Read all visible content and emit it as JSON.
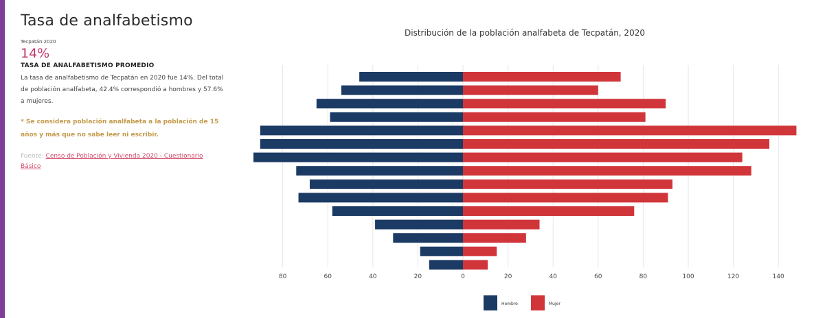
{
  "colors": {
    "accent": "#7d3f98",
    "stat": "#c0366e",
    "note": "#c49a4b",
    "hombre": "#1b3a64",
    "mujer": "#d0353a",
    "grid": "#e6e6e6"
  },
  "panel": {
    "title": "Tasa de analfabetismo",
    "place": "Tecpatán 2020",
    "stat_value": "14%",
    "stat_label": "TASA DE ANALFABETISMO PROMEDIO",
    "description": "La tasa de analfabetismo de Tecpatán en 2020 fue 14%. Del total de población analfabeta, 42.4% correspondió a hombres y 57.6% a mujeres.",
    "note": "* Se considera población analfabeta a la población de 15 años y más que no sabe leer ni escribir.",
    "source_prefix": "Fuente:",
    "source_link": "Censo de Población y Vivienda 2020 - Cuestionario Básico"
  },
  "chart_data": {
    "type": "bar",
    "orientation": "horizontal",
    "title": "Distribución de la población analfabeta de Tecpatán, 2020",
    "x_ticks": [
      "80",
      "60",
      "40",
      "20",
      "0",
      "20",
      "40",
      "60",
      "80",
      "100",
      "120",
      "140"
    ],
    "xlim": [
      -95,
      148
    ],
    "legend_position": "bottom",
    "grid": true,
    "series": [
      {
        "name": "Hombre",
        "values": [
          46,
          54,
          65,
          59,
          90,
          90,
          93,
          74,
          68,
          73,
          58,
          39,
          31,
          19,
          15
        ]
      },
      {
        "name": "Mujer",
        "values": [
          70,
          60,
          90,
          81,
          148,
          136,
          124,
          128,
          93,
          91,
          76,
          34,
          28,
          15,
          11
        ]
      }
    ]
  }
}
